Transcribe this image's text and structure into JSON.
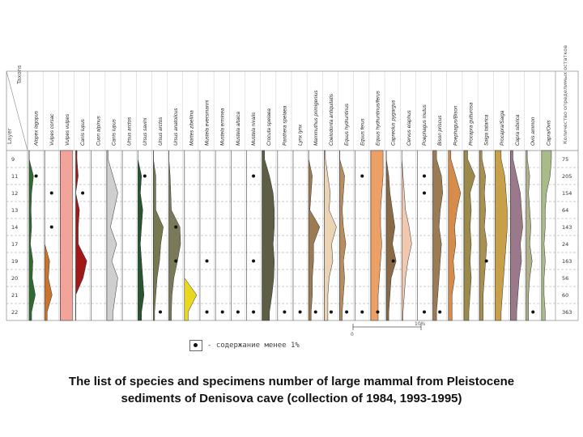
{
  "header": {
    "corner_top": "Taxons",
    "corner_left": "Layer",
    "right_header": "Количество определимых остатков"
  },
  "layers": [
    "9",
    "11",
    "12",
    "13",
    "14",
    "17",
    "19",
    "20",
    "21",
    "22"
  ],
  "counts": [
    "75",
    "205",
    "154",
    "64",
    "143",
    "24",
    "163",
    "56",
    "60",
    "363"
  ],
  "taxa": [
    {
      "name": "Alopex lagopus",
      "color": "#2e6b2e",
      "values": [
        0,
        0.35,
        0.2,
        0.15,
        0.2,
        0.1,
        0.3,
        0.25,
        0.5,
        0.2
      ]
    },
    {
      "name": "Vulpes corsac",
      "color": "#c8742c",
      "values": [
        0,
        0,
        0,
        0,
        0,
        0,
        0.4,
        0.3,
        0.6,
        0.2
      ]
    },
    {
      "name": "Vulpes vulpes",
      "color": "#f2a49a",
      "values": [
        1,
        1,
        1,
        1,
        1,
        1,
        1,
        1,
        1,
        1
      ]
    },
    {
      "name": "Canis lupus",
      "color": "#a01818",
      "values": [
        0.1,
        0.2,
        0,
        0.3,
        0.2,
        0.2,
        0.9,
        0.6,
        0,
        0
      ]
    },
    {
      "name": "Cuon alpinus",
      "color": "#8c7a6e",
      "values": [
        0,
        0,
        0,
        0,
        0,
        0,
        0,
        0,
        0,
        0
      ]
    },
    {
      "name": "Canis lupus",
      "color": "#cfcfcf",
      "values": [
        0.1,
        0.5,
        0.9,
        0.6,
        0.3,
        0.8,
        0.4,
        0.9,
        0.7,
        0.5
      ]
    },
    {
      "name": "Ursus arctos",
      "color": "#9a9a9a",
      "values": [
        0,
        0,
        0,
        0,
        0,
        0,
        0,
        0,
        0,
        0
      ]
    },
    {
      "name": "Ursus savini",
      "color": "#26552e",
      "values": [
        0,
        0.3,
        0.2,
        0.4,
        0.3,
        0.2,
        0.3,
        0.4,
        0.5,
        0.3
      ]
    },
    {
      "name": "Ursus arctos",
      "color": "#787850",
      "values": [
        0,
        0.2,
        0.2,
        0.2,
        0.8,
        0.6,
        0.5,
        0.3,
        0.2,
        0.1
      ]
    },
    {
      "name": "Ursus anatolicus",
      "color": "#7a7a58",
      "values": [
        0,
        0.1,
        0.15,
        0.2,
        0.9,
        0.95,
        0.7,
        0.4,
        0.25,
        0.2
      ]
    },
    {
      "name": "Martes zibellina",
      "color": "#e8d820",
      "values": [
        0,
        0,
        0,
        0,
        0,
        0,
        0,
        0,
        1,
        0.3
      ]
    },
    {
      "name": "Mustela eversmanni",
      "color": "#555540",
      "values": [
        0,
        0,
        0,
        0,
        0,
        0,
        0,
        0,
        0,
        0
      ]
    },
    {
      "name": "Mustela erminea",
      "color": "#6e6e50",
      "values": [
        0,
        0,
        0,
        0,
        0,
        0,
        0,
        0,
        0,
        0
      ]
    },
    {
      "name": "Mustela altaica",
      "color": "#6e6e50",
      "values": [
        0,
        0,
        0,
        0,
        0,
        0,
        0,
        0,
        0,
        0
      ]
    },
    {
      "name": "Mustela nivalis",
      "color": "#6e6e50",
      "values": [
        0,
        0,
        0,
        0,
        0,
        0,
        0,
        0,
        0,
        0
      ]
    },
    {
      "name": "Crocuta spelaea",
      "color": "#5e5e46",
      "values": [
        0.2,
        0.6,
        0.9,
        1,
        1,
        0.9,
        1,
        0.95,
        0.8,
        0.6
      ]
    },
    {
      "name": "Panthera spelaea",
      "color": "#6a6a50",
      "values": [
        0,
        0,
        0,
        0,
        0,
        0,
        0,
        0,
        0,
        0
      ]
    },
    {
      "name": "Lynx lynx",
      "color": "#6a6a50",
      "values": [
        0,
        0,
        0,
        0,
        0,
        0,
        0,
        0,
        0,
        0
      ]
    },
    {
      "name": "Mammuthus primigenius",
      "color": "#9c7a52",
      "values": [
        0,
        0.3,
        0.2,
        0.1,
        0.9,
        0.4,
        0.4,
        0.3,
        0.3,
        0.2
      ]
    },
    {
      "name": "Coelodonta antiquitatis",
      "color": "#ead4b4",
      "values": [
        0.1,
        0.3,
        0.5,
        0.4,
        1,
        0.6,
        0.7,
        0.4,
        0.3,
        0.3
      ]
    },
    {
      "name": "Equus hydruntinus",
      "color": "#b88e5e",
      "values": [
        0,
        0.4,
        0.3,
        0.2,
        0.3,
        0.5,
        0.3,
        0.4,
        0.3,
        0.2
      ]
    },
    {
      "name": "Equus ferus",
      "color": "#6a6a50",
      "values": [
        0,
        0,
        0,
        0,
        0,
        0,
        0,
        0,
        0,
        0
      ]
    },
    {
      "name": "Equus hydruntinus/ferus",
      "color": "#eca066",
      "values": [
        1,
        1,
        0.9,
        0.8,
        0.8,
        0.9,
        0.8,
        0.7,
        0.6,
        0.6
      ]
    },
    {
      "name": "Capreolus pygargus",
      "color": "#8a6a46",
      "values": [
        0,
        0.2,
        0.3,
        0.5,
        0.7,
        0.5,
        0.8,
        0.4,
        0.3,
        0.2
      ]
    },
    {
      "name": "Cervus elaphus",
      "color": "#f2c8b0",
      "values": [
        0,
        0.1,
        0.2,
        0.3,
        0.6,
        0.8,
        0.5,
        0.3,
        0.2,
        0.1
      ]
    },
    {
      "name": "Poephagus mutus",
      "color": "#6a6a50",
      "values": [
        0,
        0,
        0,
        0,
        0,
        0,
        0,
        0,
        0,
        0
      ]
    },
    {
      "name": "Bison priscus",
      "color": "#9c7a52",
      "values": [
        0.3,
        0.7,
        0.8,
        0.6,
        0.5,
        0.7,
        0.6,
        0.5,
        0.4,
        0.3
      ]
    },
    {
      "name": "Poephagus/Bison",
      "color": "#d68c4a",
      "values": [
        0.2,
        0.6,
        1,
        0.7,
        0.5,
        0.6,
        0.4,
        0.5,
        0.3,
        0.3
      ]
    },
    {
      "name": "Procapra gutturosa",
      "color": "#9c8a4a",
      "values": [
        0.3,
        0.9,
        0.5,
        0.6,
        0.5,
        0.6,
        0.5,
        0.6,
        0.5,
        0.4
      ]
    },
    {
      "name": "Saiga tatarica",
      "color": "#a89050",
      "values": [
        0.2,
        0.5,
        0.4,
        0.5,
        0.4,
        0.6,
        0.5,
        0.4,
        0.3,
        0.3
      ]
    },
    {
      "name": "Procapra/Saiga",
      "color": "#c8a04a",
      "values": [
        0.5,
        0.8,
        0.9,
        1,
        1,
        0.9,
        0.8,
        0.7,
        0.6,
        0.5
      ]
    },
    {
      "name": "Capra sibirica",
      "color": "#9a7a8a",
      "values": [
        0.2,
        0.5,
        0.8,
        0.9,
        1,
        0.8,
        0.9,
        0.7,
        0.6,
        0.5
      ]
    },
    {
      "name": "Ovis ammon",
      "color": "#b0b088",
      "values": [
        0.1,
        0.3,
        0.2,
        0.3,
        0.4,
        0.3,
        0.5,
        0.3,
        0.2,
        0.2
      ]
    },
    {
      "name": "Capra/Ovis",
      "color": "#a8bc8a",
      "values": [
        0.8,
        0.7,
        0.4,
        0.3,
        0.3,
        0.2,
        0.3,
        0.2,
        0.2,
        0.3
      ]
    }
  ],
  "dots": [
    [
      0,
      1
    ],
    [
      1,
      2
    ],
    [
      1,
      4
    ],
    [
      3,
      2
    ],
    [
      7,
      1
    ],
    [
      8,
      9
    ],
    [
      9,
      4
    ],
    [
      9,
      6
    ],
    [
      11,
      6
    ],
    [
      11,
      9
    ],
    [
      12,
      9
    ],
    [
      13,
      9
    ],
    [
      14,
      1
    ],
    [
      14,
      6
    ],
    [
      14,
      9
    ],
    [
      16,
      9
    ],
    [
      17,
      9
    ],
    [
      18,
      9
    ],
    [
      19,
      9
    ],
    [
      20,
      9
    ],
    [
      21,
      1
    ],
    [
      21,
      9
    ],
    [
      22,
      9
    ],
    [
      23,
      6
    ],
    [
      25,
      1
    ],
    [
      25,
      2
    ],
    [
      25,
      9
    ],
    [
      26,
      9
    ],
    [
      29,
      6
    ],
    [
      32,
      9
    ]
  ],
  "scale": {
    "zero": "0",
    "max": "10%"
  },
  "legend_text": "- содержание менее 1%",
  "caption_line1": "The list of species and specimens number of large mammal from Pleistocene",
  "caption_line2": "sediments of Denisova cave (collection of 1984, 1993-1995)"
}
